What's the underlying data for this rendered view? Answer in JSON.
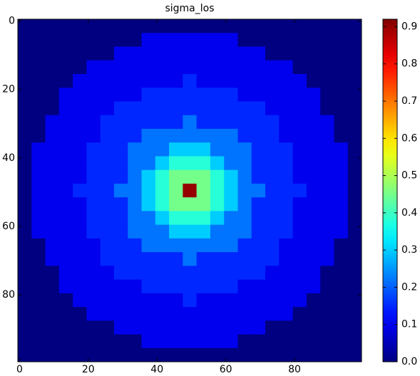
{
  "chart_data": {
    "type": "heatmap",
    "title": "sigma_los",
    "colormap": "jet",
    "xlim": [
      -0.5,
      99.5
    ],
    "ylim": [
      99.5,
      -0.5
    ],
    "xticks": [
      0,
      20,
      40,
      60,
      80
    ],
    "yticks": [
      0,
      20,
      40,
      60,
      80
    ],
    "clim": [
      0,
      0.92
    ],
    "cticks": [
      {
        "value": 0,
        "label": "0.0"
      },
      {
        "value": 0.1,
        "label": "0.1"
      },
      {
        "value": 0.2,
        "label": "0.2"
      },
      {
        "value": 0.3,
        "label": "0.3"
      },
      {
        "value": 0.4,
        "label": "0.4"
      },
      {
        "value": 0.5,
        "label": "0.5"
      },
      {
        "value": 0.6,
        "label": "0.6"
      },
      {
        "value": 0.7,
        "label": "0.7"
      },
      {
        "value": 0.8,
        "label": "0.8"
      },
      {
        "value": 0.9,
        "label": "0.9"
      }
    ],
    "values": [
      [
        0,
        0,
        0,
        0,
        0,
        0,
        0,
        0,
        0,
        0,
        0,
        0,
        0,
        0,
        0,
        0,
        0,
        0,
        0,
        0,
        0,
        0,
        0,
        0,
        0
      ],
      [
        0,
        0,
        0,
        0,
        0,
        0,
        0,
        0,
        0,
        0.1,
        0.1,
        0.1,
        0.1,
        0.1,
        0.1,
        0.1,
        0,
        0,
        0,
        0,
        0,
        0,
        0,
        0,
        0
      ],
      [
        0,
        0,
        0,
        0,
        0,
        0,
        0,
        0.1,
        0.1,
        0.1,
        0.1,
        0.1,
        0.1,
        0.1,
        0.1,
        0.1,
        0.1,
        0.1,
        0,
        0,
        0,
        0,
        0,
        0,
        0
      ],
      [
        0,
        0,
        0,
        0,
        0,
        0.1,
        0.1,
        0.1,
        0.1,
        0.1,
        0.1,
        0.1,
        0.1,
        0.1,
        0.1,
        0.1,
        0.1,
        0.1,
        0.1,
        0.1,
        0,
        0,
        0,
        0,
        0
      ],
      [
        0,
        0,
        0,
        0,
        0.1,
        0.1,
        0.1,
        0.1,
        0.1,
        0.1,
        0.1,
        0.1,
        0.15,
        0.1,
        0.1,
        0.1,
        0.1,
        0.1,
        0.1,
        0.1,
        0.1,
        0,
        0,
        0,
        0
      ],
      [
        0,
        0,
        0,
        0.1,
        0.1,
        0.1,
        0.1,
        0.1,
        0.1,
        0.15,
        0.15,
        0.15,
        0.15,
        0.15,
        0.15,
        0.15,
        0.1,
        0.1,
        0.1,
        0.1,
        0.1,
        0.1,
        0,
        0,
        0
      ],
      [
        0,
        0,
        0,
        0.1,
        0.1,
        0.1,
        0.1,
        0.15,
        0.15,
        0.15,
        0.15,
        0.15,
        0.15,
        0.15,
        0.15,
        0.15,
        0.15,
        0.15,
        0.1,
        0.1,
        0.1,
        0.1,
        0,
        0,
        0
      ],
      [
        0,
        0,
        0.1,
        0.1,
        0.1,
        0.1,
        0.15,
        0.15,
        0.15,
        0.15,
        0.15,
        0.15,
        0.22,
        0.15,
        0.15,
        0.15,
        0.15,
        0.15,
        0.15,
        0.1,
        0.1,
        0.1,
        0.1,
        0,
        0
      ],
      [
        0,
        0,
        0.1,
        0.1,
        0.1,
        0.1,
        0.15,
        0.15,
        0.15,
        0.22,
        0.22,
        0.22,
        0.22,
        0.22,
        0.22,
        0.22,
        0.15,
        0.15,
        0.15,
        0.1,
        0.1,
        0.1,
        0.1,
        0,
        0
      ],
      [
        0,
        0.1,
        0.1,
        0.1,
        0.1,
        0.15,
        0.15,
        0.15,
        0.22,
        0.22,
        0.22,
        0.3,
        0.3,
        0.3,
        0.22,
        0.22,
        0.22,
        0.15,
        0.15,
        0.15,
        0.1,
        0.1,
        0.1,
        0.1,
        0
      ],
      [
        0,
        0.1,
        0.1,
        0.1,
        0.1,
        0.15,
        0.15,
        0.15,
        0.22,
        0.22,
        0.3,
        0.38,
        0.38,
        0.38,
        0.3,
        0.22,
        0.22,
        0.15,
        0.15,
        0.15,
        0.1,
        0.1,
        0.1,
        0.1,
        0
      ],
      [
        0,
        0.1,
        0.1,
        0.1,
        0.1,
        0.15,
        0.15,
        0.15,
        0.22,
        0.3,
        0.38,
        0.45,
        0.45,
        0.45,
        0.38,
        0.3,
        0.22,
        0.15,
        0.15,
        0.15,
        0.1,
        0.1,
        0.1,
        0.1,
        0
      ],
      [
        0,
        0.1,
        0.1,
        0.1,
        0.15,
        0.15,
        0.15,
        0.22,
        0.22,
        0.3,
        0.38,
        0.45,
        0.9,
        0.45,
        0.38,
        0.3,
        0.22,
        0.22,
        0.15,
        0.15,
        0.15,
        0.1,
        0.1,
        0.1,
        0
      ],
      [
        0,
        0.1,
        0.1,
        0.1,
        0.1,
        0.15,
        0.15,
        0.15,
        0.22,
        0.3,
        0.38,
        0.45,
        0.45,
        0.45,
        0.38,
        0.3,
        0.22,
        0.15,
        0.15,
        0.15,
        0.1,
        0.1,
        0.1,
        0.1,
        0
      ],
      [
        0,
        0.1,
        0.1,
        0.1,
        0.1,
        0.15,
        0.15,
        0.15,
        0.22,
        0.22,
        0.3,
        0.38,
        0.38,
        0.38,
        0.3,
        0.22,
        0.22,
        0.15,
        0.15,
        0.15,
        0.1,
        0.1,
        0.1,
        0.1,
        0
      ],
      [
        0,
        0.1,
        0.1,
        0.1,
        0.1,
        0.15,
        0.15,
        0.15,
        0.22,
        0.22,
        0.22,
        0.3,
        0.3,
        0.3,
        0.22,
        0.22,
        0.22,
        0.15,
        0.15,
        0.15,
        0.1,
        0.1,
        0.1,
        0.1,
        0
      ],
      [
        0,
        0,
        0.1,
        0.1,
        0.1,
        0.1,
        0.15,
        0.15,
        0.15,
        0.22,
        0.22,
        0.22,
        0.22,
        0.22,
        0.22,
        0.22,
        0.15,
        0.15,
        0.15,
        0.1,
        0.1,
        0.1,
        0.1,
        0,
        0
      ],
      [
        0,
        0,
        0.1,
        0.1,
        0.1,
        0.1,
        0.15,
        0.15,
        0.15,
        0.15,
        0.15,
        0.15,
        0.22,
        0.15,
        0.15,
        0.15,
        0.15,
        0.15,
        0.15,
        0.1,
        0.1,
        0.1,
        0.1,
        0,
        0
      ],
      [
        0,
        0,
        0,
        0.1,
        0.1,
        0.1,
        0.1,
        0.15,
        0.15,
        0.15,
        0.15,
        0.15,
        0.15,
        0.15,
        0.15,
        0.15,
        0.15,
        0.15,
        0.1,
        0.1,
        0.1,
        0.1,
        0,
        0,
        0
      ],
      [
        0,
        0,
        0,
        0.1,
        0.1,
        0.1,
        0.1,
        0.1,
        0.1,
        0.15,
        0.15,
        0.15,
        0.15,
        0.15,
        0.15,
        0.15,
        0.1,
        0.1,
        0.1,
        0.1,
        0.1,
        0.1,
        0,
        0,
        0
      ],
      [
        0,
        0,
        0,
        0,
        0.1,
        0.1,
        0.1,
        0.1,
        0.1,
        0.1,
        0.1,
        0.1,
        0.15,
        0.1,
        0.1,
        0.1,
        0.1,
        0.1,
        0.1,
        0.1,
        0.1,
        0,
        0,
        0,
        0
      ],
      [
        0,
        0,
        0,
        0,
        0,
        0.1,
        0.1,
        0.1,
        0.1,
        0.1,
        0.1,
        0.1,
        0.1,
        0.1,
        0.1,
        0.1,
        0.1,
        0.1,
        0.1,
        0.1,
        0,
        0,
        0,
        0,
        0
      ],
      [
        0,
        0,
        0,
        0,
        0,
        0,
        0,
        0.1,
        0.1,
        0.1,
        0.1,
        0.1,
        0.1,
        0.1,
        0.1,
        0.1,
        0.1,
        0.1,
        0,
        0,
        0,
        0,
        0,
        0,
        0
      ],
      [
        0,
        0,
        0,
        0,
        0,
        0,
        0,
        0,
        0,
        0.1,
        0.1,
        0.1,
        0.1,
        0.1,
        0.1,
        0.1,
        0,
        0,
        0,
        0,
        0,
        0,
        0,
        0,
        0
      ],
      [
        0,
        0,
        0,
        0,
        0,
        0,
        0,
        0,
        0,
        0,
        0,
        0,
        0,
        0,
        0,
        0,
        0,
        0,
        0,
        0,
        0,
        0,
        0,
        0,
        0
      ]
    ]
  }
}
